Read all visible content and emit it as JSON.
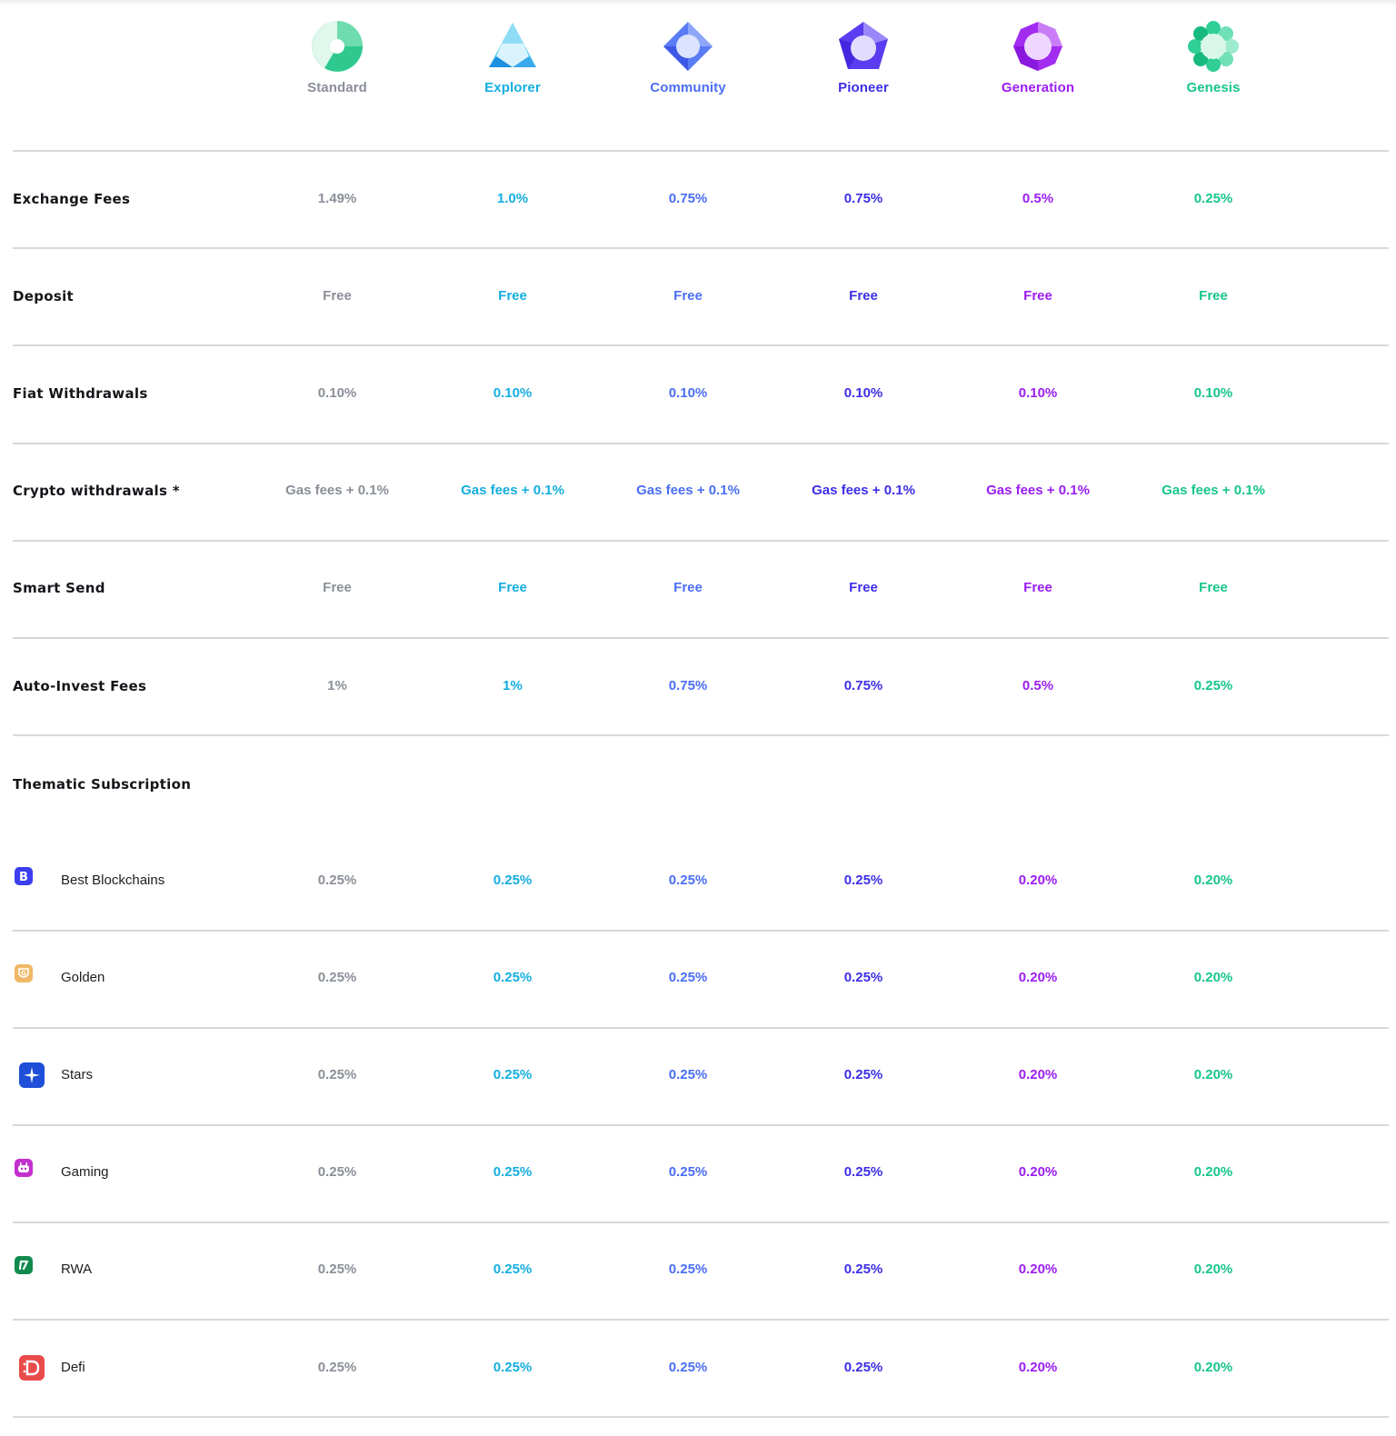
{
  "tiers": [
    {
      "name": "Standard",
      "color": "#8a8f98"
    },
    {
      "name": "Explorer",
      "color": "#14aee0"
    },
    {
      "name": "Community",
      "color": "#4a6ef5"
    },
    {
      "name": "Pioneer",
      "color": "#3d2ee8"
    },
    {
      "name": "Generation",
      "color": "#9b1df2"
    },
    {
      "name": "Genesis",
      "color": "#17c58b"
    }
  ],
  "rows": [
    {
      "label": "Exchange Fees",
      "values": [
        "1.49%",
        "1.0%",
        "0.75%",
        "0.75%",
        "0.5%",
        "0.25%"
      ]
    },
    {
      "label": "Deposit",
      "values": [
        "Free",
        "Free",
        "Free",
        "Free",
        "Free",
        "Free"
      ]
    },
    {
      "label": "Fiat Withdrawals",
      "values": [
        "0.10%",
        "0.10%",
        "0.10%",
        "0.10%",
        "0.10%",
        "0.10%"
      ]
    },
    {
      "label": "Crypto withdrawals *",
      "values": [
        "Gas fees + 0.1%",
        "Gas fees + 0.1%",
        "Gas fees + 0.1%",
        "Gas fees + 0.1%",
        "Gas fees + 0.1%",
        "Gas fees + 0.1%"
      ]
    },
    {
      "label": "Smart Send",
      "values": [
        "Free",
        "Free",
        "Free",
        "Free",
        "Free",
        "Free"
      ]
    },
    {
      "label": "Auto-Invest Fees",
      "values": [
        "1%",
        "1%",
        "0.75%",
        "0.75%",
        "0.5%",
        "0.25%"
      ]
    }
  ],
  "thematic": {
    "heading": "Thematic Subscription",
    "items": [
      {
        "label": "Best Blockchains",
        "icon": "best-blockchains-icon",
        "icon_color": "#3d3ef0",
        "values": [
          "0.25%",
          "0.25%",
          "0.25%",
          "0.25%",
          "0.20%",
          "0.20%"
        ]
      },
      {
        "label": "Golden",
        "icon": "golden-icon",
        "icon_color": "#f0b866",
        "values": [
          "0.25%",
          "0.25%",
          "0.25%",
          "0.25%",
          "0.20%",
          "0.20%"
        ]
      },
      {
        "label": "Stars",
        "icon": "stars-icon",
        "icon_color": "#1f4fd8",
        "values": [
          "0.25%",
          "0.25%",
          "0.25%",
          "0.25%",
          "0.20%",
          "0.20%"
        ]
      },
      {
        "label": "Gaming",
        "icon": "gaming-icon",
        "icon_color": "#c42fd0",
        "values": [
          "0.25%",
          "0.25%",
          "0.25%",
          "0.25%",
          "0.20%",
          "0.20%"
        ]
      },
      {
        "label": "RWA",
        "icon": "rwa-icon",
        "icon_color": "#118a4e",
        "values": [
          "0.25%",
          "0.25%",
          "0.25%",
          "0.25%",
          "0.20%",
          "0.20%"
        ]
      },
      {
        "label": "Defi",
        "icon": "defi-icon",
        "icon_color": "#e94b4b",
        "values": [
          "0.25%",
          "0.25%",
          "0.25%",
          "0.25%",
          "0.20%",
          "0.20%"
        ]
      }
    ]
  }
}
